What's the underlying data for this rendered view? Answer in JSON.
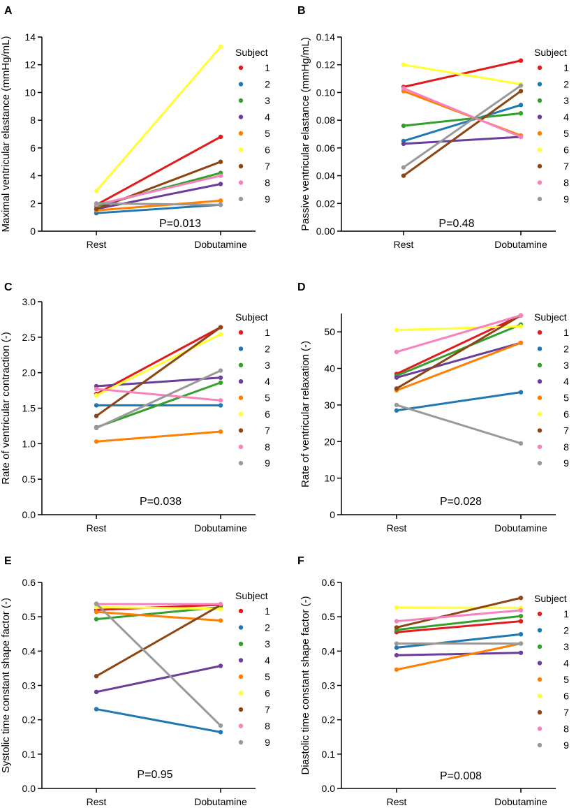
{
  "colors": {
    "subjects": [
      "#e31a1c",
      "#1f78b4",
      "#33a02c",
      "#6a3d9a",
      "#ff7f00",
      "#ffff33",
      "#8c4513",
      "#f781bf",
      "#999999"
    ]
  },
  "chart_data": [
    {
      "panel": "A",
      "type": "line",
      "categories": [
        "Rest",
        "Dobutamine"
      ],
      "ylabel": "Maximal ventricular elastance (mmHg/mL)",
      "ylim": [
        0,
        14
      ],
      "yticks": [
        "0",
        "2",
        "4",
        "6",
        "8",
        "10",
        "12",
        "14"
      ],
      "pvalue": "P=0.013",
      "legend_title": "Subject",
      "series": [
        {
          "name": "1",
          "values": [
            1.9,
            6.8
          ]
        },
        {
          "name": "2",
          "values": [
            1.3,
            1.9
          ]
        },
        {
          "name": "3",
          "values": [
            1.8,
            4.2
          ]
        },
        {
          "name": "4",
          "values": [
            1.6,
            3.4
          ]
        },
        {
          "name": "5",
          "values": [
            1.5,
            2.2
          ]
        },
        {
          "name": "6",
          "values": [
            2.9,
            13.3
          ]
        },
        {
          "name": "7",
          "values": [
            1.6,
            5.0
          ]
        },
        {
          "name": "8",
          "values": [
            1.9,
            4.0
          ]
        },
        {
          "name": "9",
          "values": [
            2.0,
            1.9
          ]
        }
      ]
    },
    {
      "panel": "B",
      "type": "line",
      "categories": [
        "Rest",
        "Dobutamine"
      ],
      "ylabel": "Passive ventricular elastance (mmHg/mL)",
      "ylim": [
        0,
        0.14
      ],
      "yticks": [
        "0.00",
        "0.02",
        "0.04",
        "0.06",
        "0.08",
        "0.10",
        "0.12",
        "0.14"
      ],
      "pvalue": "P=0.48",
      "legend_title": "Subject",
      "series": [
        {
          "name": "1",
          "values": [
            0.104,
            0.123
          ]
        },
        {
          "name": "2",
          "values": [
            0.065,
            0.091
          ]
        },
        {
          "name": "3",
          "values": [
            0.076,
            0.085
          ]
        },
        {
          "name": "4",
          "values": [
            0.063,
            0.068
          ]
        },
        {
          "name": "5",
          "values": [
            0.101,
            0.069
          ]
        },
        {
          "name": "6",
          "values": [
            0.12,
            0.106
          ]
        },
        {
          "name": "7",
          "values": [
            0.04,
            0.101
          ]
        },
        {
          "name": "8",
          "values": [
            0.103,
            0.068
          ]
        },
        {
          "name": "9",
          "values": [
            0.046,
            0.105
          ]
        }
      ]
    },
    {
      "panel": "C",
      "type": "line",
      "categories": [
        "Rest",
        "Dobutamine"
      ],
      "ylabel": "Rate of ventricular contraction (-)",
      "ylim": [
        0,
        3.0
      ],
      "yticks": [
        "0.0",
        "0.5",
        "1.0",
        "1.5",
        "2.0",
        "2.5",
        "3.0"
      ],
      "pvalue": "P=0.038",
      "legend_title": "Subject",
      "series": [
        {
          "name": "1",
          "values": [
            1.7,
            2.64
          ]
        },
        {
          "name": "2",
          "values": [
            1.54,
            1.54
          ]
        },
        {
          "name": "3",
          "values": [
            1.23,
            1.86
          ]
        },
        {
          "name": "4",
          "values": [
            1.81,
            1.93
          ]
        },
        {
          "name": "5",
          "values": [
            1.03,
            1.17
          ]
        },
        {
          "name": "6",
          "values": [
            1.68,
            2.54
          ]
        },
        {
          "name": "7",
          "values": [
            1.39,
            2.64
          ]
        },
        {
          "name": "8",
          "values": [
            1.77,
            1.61
          ]
        },
        {
          "name": "9",
          "values": [
            1.22,
            2.03
          ]
        }
      ]
    },
    {
      "panel": "D",
      "type": "line",
      "categories": [
        "Rest",
        "Dobutamine"
      ],
      "ylabel": "Rate of ventricular relaxation (-)",
      "ylim": [
        0,
        55
      ],
      "yticks": [
        "0",
        "10",
        "20",
        "30",
        "40",
        "50"
      ],
      "pvalue": "P=0.028",
      "legend_title": "Subject",
      "series": [
        {
          "name": "1",
          "values": [
            38.5,
            54.5
          ]
        },
        {
          "name": "2",
          "values": [
            28.5,
            33.5
          ]
        },
        {
          "name": "3",
          "values": [
            38.0,
            52.0
          ]
        },
        {
          "name": "4",
          "values": [
            37.5,
            47.0
          ]
        },
        {
          "name": "5",
          "values": [
            34.0,
            47.0
          ]
        },
        {
          "name": "6",
          "values": [
            50.5,
            51.5
          ]
        },
        {
          "name": "7",
          "values": [
            34.5,
            54.5
          ]
        },
        {
          "name": "8",
          "values": [
            44.5,
            54.5
          ]
        },
        {
          "name": "9",
          "values": [
            30.0,
            19.5
          ]
        }
      ]
    },
    {
      "panel": "E",
      "type": "line",
      "categories": [
        "Rest",
        "Dobutamine"
      ],
      "ylabel": "Systolic time constant shape factor (-)",
      "ylim": [
        0,
        0.6
      ],
      "yticks": [
        "0.0",
        "0.1",
        "0.2",
        "0.3",
        "0.4",
        "0.5",
        "0.6"
      ],
      "pvalue": "P=0.95",
      "legend_title": "Subject",
      "series": [
        {
          "name": "1",
          "values": [
            0.52,
            0.535
          ]
        },
        {
          "name": "2",
          "values": [
            0.231,
            0.164
          ]
        },
        {
          "name": "3",
          "values": [
            0.493,
            0.528
          ]
        },
        {
          "name": "4",
          "values": [
            0.281,
            0.357
          ]
        },
        {
          "name": "5",
          "values": [
            0.514,
            0.489
          ]
        },
        {
          "name": "6",
          "values": [
            0.528,
            0.523
          ]
        },
        {
          "name": "7",
          "values": [
            0.327,
            0.534
          ]
        },
        {
          "name": "8",
          "values": [
            0.537,
            0.537
          ]
        },
        {
          "name": "9",
          "values": [
            0.538,
            0.183
          ]
        }
      ]
    },
    {
      "panel": "F",
      "type": "line",
      "categories": [
        "Rest",
        "Dobutamine"
      ],
      "ylabel": "Diastolic time constant shape factor (-)",
      "ylim": [
        0,
        0.6
      ],
      "yticks": [
        "0.0",
        "0.1",
        "0.2",
        "0.3",
        "0.4",
        "0.5",
        "0.6"
      ],
      "pvalue": "P=0.008",
      "legend_title": "Subject",
      "series": [
        {
          "name": "1",
          "values": [
            0.455,
            0.487
          ]
        },
        {
          "name": "2",
          "values": [
            0.41,
            0.449
          ]
        },
        {
          "name": "3",
          "values": [
            0.462,
            0.502
          ]
        },
        {
          "name": "4",
          "values": [
            0.388,
            0.395
          ]
        },
        {
          "name": "5",
          "values": [
            0.346,
            0.422
          ]
        },
        {
          "name": "6",
          "values": [
            0.527,
            0.526
          ]
        },
        {
          "name": "7",
          "values": [
            0.469,
            0.555
          ]
        },
        {
          "name": "8",
          "values": [
            0.487,
            0.519
          ]
        },
        {
          "name": "9",
          "values": [
            0.422,
            0.422
          ]
        }
      ]
    }
  ]
}
